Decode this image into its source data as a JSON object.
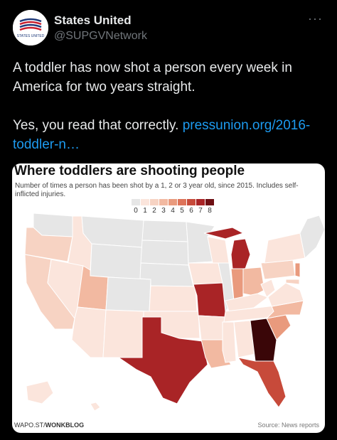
{
  "author": {
    "name": "States United",
    "handle": "@SUPGVNetwork",
    "avatar_text": "STATES UNITED"
  },
  "menu_icon": "more-icon",
  "tweet": {
    "line1": "A toddler has now shot a person every week in America for two years straight.",
    "line2_text": "Yes, you read that correctly. ",
    "link_text": "pressunion.org/2016-toddler-n…"
  },
  "card": {
    "title": "Where toddlers are shooting people",
    "subtitle": "Number of times a person has been shot by a 1, 2 or 3 year old, since 2015. Includes self-inflicted injuries.",
    "legend": [
      "0",
      "1",
      "2",
      "3",
      "4",
      "5",
      "6",
      "7",
      "8"
    ],
    "legend_colors": [
      "#e6e6e6",
      "#fbe5dc",
      "#f7d3c3",
      "#f2b9a1",
      "#e99a7d",
      "#dd7359",
      "#c74a3a",
      "#a92426",
      "#6e0f13"
    ],
    "footer_left_prefix": "WAPO.ST/",
    "footer_left_bold": "WONKBLOG",
    "footer_right": "Source: News reports"
  }
}
